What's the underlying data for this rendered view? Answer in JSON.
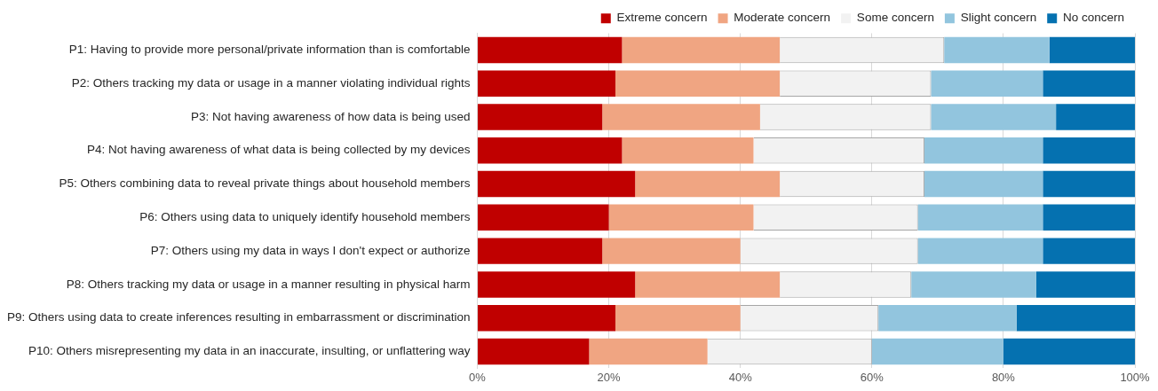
{
  "chart_data": {
    "type": "bar",
    "orientation": "horizontal",
    "stacked": true,
    "categories": [
      "P1: Having to provide more personal/private information than is comfortable",
      "P2: Others tracking my data or usage in a manner violating individual rights",
      "P3: Not having awareness of how data is being used",
      "P4: Not having awareness of what data is being collected by my devices",
      "P5: Others combining data to reveal private things about household members",
      "P6: Others using data to uniquely identify household members",
      "P7: Others using my data in ways I don't expect or authorize",
      "P8: Others tracking my data or usage in a manner resulting in physical harm",
      "P9: Others using data to create inferences resulting in embarrassment or discrimination",
      "P10: Others misrepresenting my data in an inaccurate, insulting, or unflattering way"
    ],
    "series": [
      {
        "name": "Extreme concern",
        "color": "#c00000",
        "values": [
          22,
          21,
          19,
          22,
          24,
          20,
          19,
          24,
          21,
          17
        ]
      },
      {
        "name": "Moderate concern",
        "color": "#f0a582",
        "values": [
          24,
          25,
          24,
          20,
          22,
          22,
          21,
          22,
          19,
          18
        ]
      },
      {
        "name": "Some concern",
        "color": "#f2f2f2",
        "values": [
          25,
          23,
          26,
          26,
          22,
          25,
          27,
          20,
          21,
          25
        ]
      },
      {
        "name": "Slight concern",
        "color": "#92c5de",
        "values": [
          16,
          17,
          19,
          18,
          18,
          19,
          19,
          19,
          21,
          20
        ]
      },
      {
        "name": "No concern",
        "color": "#0571b0",
        "values": [
          13,
          14,
          12,
          14,
          14,
          14,
          14,
          15,
          18,
          20
        ]
      }
    ],
    "xlim": [
      0,
      100
    ],
    "xticks": [
      {
        "value": 0,
        "label": "0%"
      },
      {
        "value": 20,
        "label": "20%"
      },
      {
        "value": 40,
        "label": "40%"
      },
      {
        "value": 60,
        "label": "60%"
      },
      {
        "value": 80,
        "label": "80%"
      },
      {
        "value": 100,
        "label": "100%"
      }
    ],
    "grid": "x",
    "legend": "top right"
  }
}
